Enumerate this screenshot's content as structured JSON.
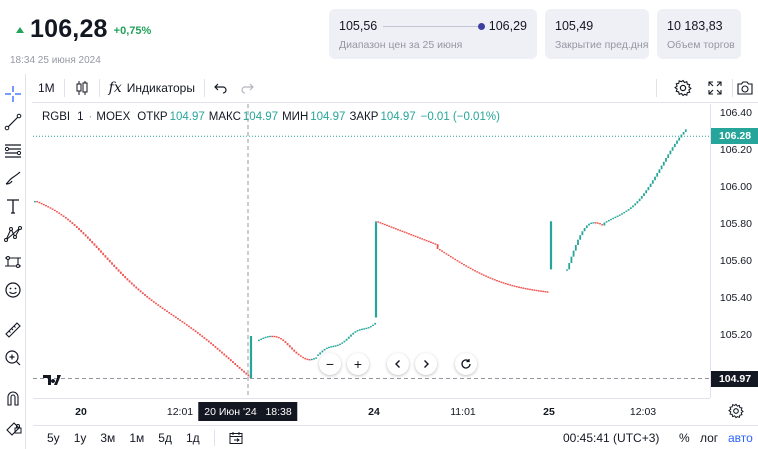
{
  "quote": {
    "price": "106,28",
    "change": "+0,75%",
    "timestamp": "18:34 25 июня 2024"
  },
  "cards": {
    "range_low": "105,56",
    "range_high": "106,29",
    "range_label": "Диапазон цен за 25 июня",
    "prev_close_value": "105,49",
    "prev_close_label": "Закрытие пред.дня",
    "volume_value": "10 183,83",
    "volume_label": "Объем торгов"
  },
  "toolbar": {
    "interval": "1M",
    "indicators": "Индикаторы"
  },
  "legend": {
    "symbol": "RGBI",
    "interval": "1",
    "exchange": "MOEX",
    "open_label": "ОТКР",
    "open_value": "104.97",
    "high_label": "МАКС",
    "high_value": "104.97",
    "low_label": "МИН",
    "low_value": "104.97",
    "close_label": "ЗАКР",
    "close_value": "104.97",
    "change": "−0.01 (−0.01%)"
  },
  "yaxis": {
    "ticks": [
      "106.40",
      "106.20",
      "106.00",
      "105.80",
      "105.60",
      "105.40",
      "105.20"
    ],
    "last_price_badge": "106.28",
    "crosshair_badge": "104.97"
  },
  "xaxis": {
    "ticks": [
      {
        "label": "20",
        "bold": true
      },
      {
        "label": "12:01",
        "bold": false
      },
      {
        "label": "24",
        "bold": true
      },
      {
        "label": "11:01",
        "bold": false
      },
      {
        "label": "25",
        "bold": true
      },
      {
        "label": "12:03",
        "bold": false
      }
    ],
    "crosshair_label": "20 Июн '24   18:38"
  },
  "bottom": {
    "ranges": [
      "5y",
      "1y",
      "3м",
      "1м",
      "5д",
      "1д"
    ],
    "clock": "00:45:41 (UTC+3)",
    "percent": "%",
    "log": "лог",
    "auto": "авто"
  },
  "colors": {
    "up": "#26a69a",
    "down": "#ef5350",
    "positive_text": "#21a35a",
    "auto_accent": "#2962ff"
  },
  "chart_data": {
    "type": "candlestick",
    "ylim": [
      104.95,
      106.45
    ],
    "segments": [
      {
        "day": "20",
        "start": 105.93,
        "end": 104.97
      },
      {
        "day": "21",
        "start": 105.18,
        "end": 105.1
      },
      {
        "day": "21",
        "start": 105.1,
        "end": 105.28
      },
      {
        "day": "24",
        "start": 105.8,
        "end": 105.44
      },
      {
        "day": "25",
        "start": 105.56,
        "end": 106.28
      }
    ],
    "jumps": [
      {
        "from": 104.97,
        "to": 105.2
      },
      {
        "from": 105.3,
        "to": 105.81
      },
      {
        "from": 105.56,
        "to": 105.82
      }
    ]
  }
}
